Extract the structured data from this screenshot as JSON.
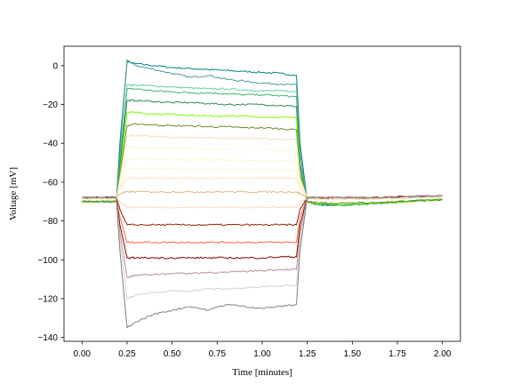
{
  "chart_data": {
    "type": "line",
    "xlabel": "Time [minutes]",
    "ylabel": "Voltage [mV]",
    "xlim": [
      -0.1,
      2.1
    ],
    "ylim": [
      -142,
      10
    ],
    "x_ticks": [
      0.0,
      0.25,
      0.5,
      0.75,
      1.0,
      1.25,
      1.5,
      1.75,
      2.0
    ],
    "x_tick_labels": [
      "0.00",
      "0.25",
      "0.50",
      "0.75",
      "1.00",
      "1.25",
      "1.50",
      "1.75",
      "2.00"
    ],
    "y_ticks": [
      0,
      -20,
      -40,
      -60,
      -80,
      -100,
      -120,
      -140
    ],
    "y_tick_labels": [
      "0",
      "−20",
      "−40",
      "−60",
      "−80",
      "−100",
      "−120",
      "−140"
    ],
    "grid": false,
    "legend": "none",
    "stimulus_window": [
      0.2,
      1.2
    ],
    "x": [
      0.0,
      0.1,
      0.19,
      0.21,
      0.25,
      0.3,
      0.4,
      0.5,
      0.6,
      0.7,
      0.8,
      0.9,
      1.0,
      1.1,
      1.19,
      1.21,
      1.25,
      1.3,
      1.4,
      1.6,
      1.8,
      2.0
    ],
    "series": [
      {
        "color": "#008080",
        "values": [
          -70,
          -70,
          -70,
          -40,
          2,
          1,
          0,
          -1,
          -1.5,
          -2,
          -2.5,
          -3,
          -3.5,
          -4,
          -5,
          -40,
          -70,
          -71.5,
          -72,
          -71,
          -70,
          -69
        ]
      },
      {
        "color": "#4f9a9a",
        "values": [
          -70,
          -70,
          -70,
          -45,
          3,
          0,
          -2,
          -4,
          -6,
          -5,
          -7,
          -8,
          -9,
          -9.5,
          -10,
          -45,
          -70,
          -71.5,
          -72,
          -71,
          -70,
          -69
        ]
      },
      {
        "color": "#66cdaa",
        "values": [
          -70,
          -70,
          -70,
          -50,
          -10,
          -10,
          -10.5,
          -11,
          -11.5,
          -12,
          -12,
          -12.5,
          -13,
          -13,
          -13.5,
          -50,
          -70,
          -71.5,
          -72,
          -71,
          -70,
          -69
        ]
      },
      {
        "color": "#3cb371",
        "values": [
          -70,
          -70,
          -70,
          -50,
          -12,
          -12,
          -13,
          -13.5,
          -14,
          -14,
          -14.5,
          -15,
          -15,
          -15.5,
          -16,
          -50,
          -70,
          -71.5,
          -72,
          -71,
          -70,
          -69
        ]
      },
      {
        "color": "#2e8b57",
        "values": [
          -70,
          -70,
          -70,
          -52,
          -18,
          -18,
          -18.5,
          -19,
          -19,
          -19.5,
          -20,
          -20,
          -20,
          -20.5,
          -21,
          -52,
          -70,
          -71.5,
          -72,
          -71,
          -70,
          -69
        ]
      },
      {
        "color": "#7cfc00",
        "values": [
          -70,
          -70,
          -70,
          -55,
          -24,
          -24,
          -25,
          -25,
          -25.5,
          -26,
          -26,
          -26,
          -26.5,
          -26.5,
          -27,
          -55,
          -70,
          -71,
          -71.5,
          -71,
          -70,
          -69
        ]
      },
      {
        "color": "#6b8e23",
        "values": [
          -70,
          -70,
          -70,
          -56,
          -31,
          -30,
          -30.5,
          -31,
          -31,
          -31.5,
          -31.5,
          -32,
          -32,
          -32.5,
          -33,
          -56,
          -70,
          -70.5,
          -71,
          -70.5,
          -70,
          -69
        ]
      },
      {
        "color": "#f5deb3",
        "values": [
          -69,
          -69,
          -69,
          -58,
          -36,
          -36,
          -36.5,
          -37,
          -37,
          -37,
          -37.5,
          -37.5,
          -37.5,
          -38,
          -38,
          -58,
          -68,
          -69,
          -69,
          -69,
          -68.5,
          -68
        ]
      },
      {
        "color": "#fff8dc",
        "values": [
          -69,
          -69,
          -69,
          -60,
          -42,
          -42,
          -42.5,
          -42.5,
          -43,
          -43,
          -43,
          -43,
          -43,
          -43.5,
          -43.5,
          -60,
          -68,
          -68.5,
          -68.5,
          -68.5,
          -68,
          -68
        ]
      },
      {
        "color": "#fffacd",
        "values": [
          -69,
          -69,
          -69,
          -61,
          -48,
          -48,
          -48,
          -48.5,
          -48.5,
          -48.5,
          -48.5,
          -49,
          -49,
          -49,
          -49,
          -61,
          -68,
          -68.5,
          -68.5,
          -68.5,
          -68,
          -68
        ]
      },
      {
        "color": "#fafad2",
        "values": [
          -69,
          -69,
          -69,
          -63,
          -53,
          -53,
          -53,
          -53,
          -53.5,
          -53.5,
          -53.5,
          -53.5,
          -53.5,
          -54,
          -54,
          -63,
          -68,
          -68.5,
          -68.5,
          -68.5,
          -68,
          -68
        ]
      },
      {
        "color": "#ffe4c4",
        "values": [
          -68,
          -68,
          -68,
          -63,
          -58,
          -58,
          -58,
          -58,
          -58,
          -58,
          -58,
          -58,
          -58,
          -58,
          -58,
          -63,
          -67.5,
          -68,
          -68,
          -68,
          -67.5,
          -67
        ]
      },
      {
        "color": "#deb887",
        "values": [
          -68,
          -68,
          -68,
          -66,
          -65,
          -65,
          -65,
          -65,
          -65,
          -65,
          -65,
          -65,
          -65,
          -65,
          -65,
          -66,
          -67.5,
          -68,
          -68,
          -68,
          -67.5,
          -67
        ]
      },
      {
        "color": "#ffdab9",
        "values": [
          -68,
          -68,
          -68,
          -70,
          -73,
          -73,
          -73,
          -73,
          -73,
          -73,
          -73,
          -73,
          -73,
          -73,
          -73,
          -70,
          -68,
          -68,
          -68,
          -68,
          -67.5,
          -67
        ]
      },
      {
        "color": "#8b2500",
        "values": [
          -68,
          -68,
          -68,
          -74,
          -82,
          -82,
          -82,
          -82,
          -82,
          -82,
          -82,
          -82,
          -82,
          -82,
          -82,
          -74,
          -68,
          -68,
          -68,
          -68,
          -67.5,
          -67
        ]
      },
      {
        "color": "#ff6347",
        "values": [
          -68,
          -68,
          -68,
          -78,
          -91,
          -91,
          -91,
          -91,
          -91,
          -91,
          -91,
          -91,
          -91,
          -91,
          -91,
          -78,
          -68,
          -68,
          -68,
          -68,
          -67.5,
          -67
        ]
      },
      {
        "color": "#800000",
        "values": [
          -68,
          -68,
          -68,
          -82,
          -99,
          -99,
          -99,
          -99,
          -99,
          -99,
          -99,
          -99,
          -99,
          -98.5,
          -98.5,
          -82,
          -68,
          -68,
          -68,
          -68,
          -67.5,
          -67
        ]
      },
      {
        "color": "#bc8f8f",
        "values": [
          -68,
          -68,
          -68,
          -86,
          -109,
          -108,
          -107.5,
          -107,
          -107,
          -106.5,
          -106.5,
          -106,
          -105.5,
          -105,
          -105,
          -86,
          -68,
          -68,
          -68,
          -68,
          -67.5,
          -67
        ]
      },
      {
        "color": "#d3d3d3",
        "values": [
          -68,
          -68,
          -68,
          -90,
          -120,
          -118,
          -117,
          -116,
          -116,
          -115,
          -115,
          -114.5,
          -114,
          -113.5,
          -113,
          -90,
          -68,
          -68,
          -68,
          -68,
          -67.5,
          -67
        ]
      },
      {
        "color": "#808080",
        "values": [
          -68,
          -68,
          -68,
          -95,
          -135,
          -132,
          -128,
          -126,
          -124,
          -126,
          -123,
          -124,
          -125,
          -124,
          -123,
          -95,
          -68,
          -68,
          -68,
          -68,
          -67.5,
          -67
        ]
      }
    ]
  }
}
